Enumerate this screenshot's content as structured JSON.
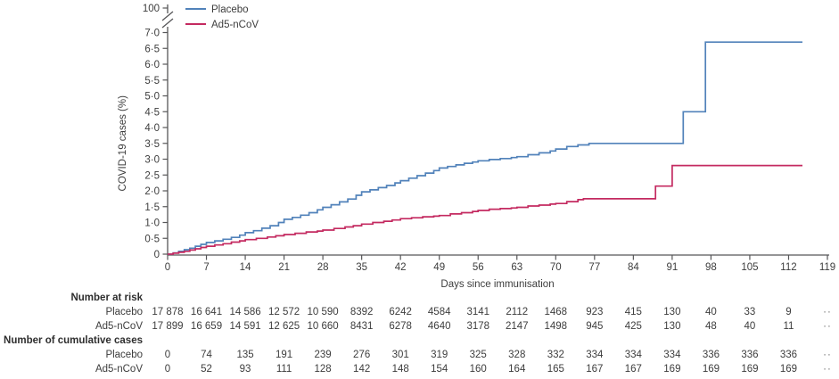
{
  "figure": {
    "yaxis": {
      "title": "COVID-19 cases (%)",
      "break_upper_label": "100",
      "tick_labels": [
        "7·0",
        "6·5",
        "6·0",
        "5·5",
        "5·0",
        "4·5",
        "4·0",
        "3·5",
        "3·0",
        "2·5",
        "2·0",
        "1·5",
        "1·0",
        "0·5",
        "0"
      ],
      "tick_values": [
        7.0,
        6.5,
        6.0,
        5.5,
        5.0,
        4.5,
        4.0,
        3.5,
        3.0,
        2.5,
        2.0,
        1.5,
        1.0,
        0.5,
        0
      ]
    },
    "xaxis": {
      "title": "Days since immunisation",
      "tick_values": [
        0,
        7,
        14,
        21,
        28,
        35,
        42,
        49,
        56,
        63,
        70,
        77,
        84,
        91,
        98,
        105,
        112,
        119
      ]
    },
    "legend": {
      "position": "top-left",
      "items": [
        {
          "label": "Placebo",
          "color": "#5182ba"
        },
        {
          "label": "Ad5-nCoV",
          "color": "#c42a60"
        }
      ]
    },
    "axis_color": "#565658",
    "text_color": "#3d3d3d"
  },
  "chart_data": {
    "type": "line",
    "subtype": "kaplan-meier-step",
    "step": "after",
    "title": "",
    "xlabel": "Days since immunisation",
    "ylabel": "COVID-19 cases (%)",
    "xlim": [
      0,
      119
    ],
    "ylim": [
      0,
      7.0
    ],
    "y_axis_break": {
      "present": true,
      "upper_tick": 100
    },
    "grid": false,
    "legend_position": "top-left",
    "series": [
      {
        "name": "Placebo",
        "color": "#5182ba",
        "points": [
          [
            0,
            0
          ],
          [
            1,
            0.04
          ],
          [
            2,
            0.09
          ],
          [
            3,
            0.14
          ],
          [
            4,
            0.19
          ],
          [
            5,
            0.25
          ],
          [
            6,
            0.31
          ],
          [
            7,
            0.37
          ],
          [
            8.5,
            0.42
          ],
          [
            10,
            0.47
          ],
          [
            11.5,
            0.53
          ],
          [
            13,
            0.6
          ],
          [
            14,
            0.68
          ],
          [
            15.5,
            0.74
          ],
          [
            17,
            0.82
          ],
          [
            18.5,
            0.9
          ],
          [
            20,
            1.0
          ],
          [
            21,
            1.1
          ],
          [
            22.5,
            1.16
          ],
          [
            24,
            1.23
          ],
          [
            25.5,
            1.31
          ],
          [
            27,
            1.4
          ],
          [
            28,
            1.48
          ],
          [
            29.5,
            1.56
          ],
          [
            31,
            1.65
          ],
          [
            32.5,
            1.74
          ],
          [
            34,
            1.86
          ],
          [
            35,
            1.97
          ],
          [
            36.5,
            2.03
          ],
          [
            38,
            2.1
          ],
          [
            39.5,
            2.17
          ],
          [
            41,
            2.25
          ],
          [
            42,
            2.32
          ],
          [
            43.5,
            2.4
          ],
          [
            45,
            2.48
          ],
          [
            46.5,
            2.56
          ],
          [
            48,
            2.64
          ],
          [
            49,
            2.72
          ],
          [
            50.5,
            2.77
          ],
          [
            52,
            2.82
          ],
          [
            53.5,
            2.87
          ],
          [
            55,
            2.91
          ],
          [
            56,
            2.95
          ],
          [
            58,
            2.99
          ],
          [
            60,
            3.02
          ],
          [
            62,
            3.05
          ],
          [
            63,
            3.08
          ],
          [
            65,
            3.14
          ],
          [
            67,
            3.2
          ],
          [
            69,
            3.26
          ],
          [
            70,
            3.32
          ],
          [
            72,
            3.4
          ],
          [
            74,
            3.45
          ],
          [
            76,
            3.5
          ],
          [
            93,
            4.5
          ],
          [
            97,
            6.7
          ],
          [
            114.5,
            6.7
          ]
        ]
      },
      {
        "name": "Ad5-nCoV",
        "color": "#c42a60",
        "points": [
          [
            0,
            0
          ],
          [
            1,
            0.03
          ],
          [
            2,
            0.06
          ],
          [
            3,
            0.09
          ],
          [
            4,
            0.13
          ],
          [
            5,
            0.17
          ],
          [
            6,
            0.21
          ],
          [
            7,
            0.25
          ],
          [
            8.5,
            0.29
          ],
          [
            10,
            0.33
          ],
          [
            11.5,
            0.38
          ],
          [
            13,
            0.42
          ],
          [
            14,
            0.46
          ],
          [
            16,
            0.5
          ],
          [
            18,
            0.54
          ],
          [
            19.5,
            0.58
          ],
          [
            21,
            0.62
          ],
          [
            23,
            0.66
          ],
          [
            25,
            0.7
          ],
          [
            27,
            0.73
          ],
          [
            28,
            0.76
          ],
          [
            30,
            0.81
          ],
          [
            32,
            0.86
          ],
          [
            33.5,
            0.9
          ],
          [
            35,
            0.95
          ],
          [
            37,
            1.0
          ],
          [
            39,
            1.04
          ],
          [
            40.5,
            1.08
          ],
          [
            42,
            1.12
          ],
          [
            44,
            1.15
          ],
          [
            46,
            1.18
          ],
          [
            48,
            1.2
          ],
          [
            49,
            1.22
          ],
          [
            51,
            1.27
          ],
          [
            53,
            1.31
          ],
          [
            55,
            1.35
          ],
          [
            56,
            1.38
          ],
          [
            58,
            1.42
          ],
          [
            60,
            1.44
          ],
          [
            62,
            1.46
          ],
          [
            63,
            1.48
          ],
          [
            65,
            1.52
          ],
          [
            67,
            1.55
          ],
          [
            69,
            1.58
          ],
          [
            70,
            1.6
          ],
          [
            72,
            1.66
          ],
          [
            74,
            1.72
          ],
          [
            75,
            1.75
          ],
          [
            88,
            2.15
          ],
          [
            91,
            2.8
          ],
          [
            114.5,
            2.8
          ]
        ]
      }
    ]
  },
  "risk_table": {
    "column_days": [
      0,
      7,
      14,
      21,
      28,
      35,
      42,
      49,
      56,
      63,
      70,
      77,
      84,
      91,
      98,
      105,
      112
    ],
    "overflow_symbol": "··",
    "sections": [
      {
        "header": "Number at risk",
        "rows": [
          {
            "label": "Placebo",
            "values": [
              "17 878",
              "16 641",
              "14 586",
              "12 572",
              "10 590",
              "8392",
              "6242",
              "4584",
              "3141",
              "2112",
              "1468",
              "923",
              "415",
              "130",
              "40",
              "33",
              "9"
            ]
          },
          {
            "label": "Ad5-nCoV",
            "values": [
              "17 899",
              "16 659",
              "14 591",
              "12 625",
              "10 660",
              "8431",
              "6278",
              "4640",
              "3178",
              "2147",
              "1498",
              "945",
              "425",
              "130",
              "48",
              "40",
              "11"
            ]
          }
        ]
      },
      {
        "header": "Number of cumulative cases",
        "rows": [
          {
            "label": "Placebo",
            "values": [
              "0",
              "74",
              "135",
              "191",
              "239",
              "276",
              "301",
              "319",
              "325",
              "328",
              "332",
              "334",
              "334",
              "334",
              "336",
              "336",
              "336"
            ]
          },
          {
            "label": "Ad5-nCoV",
            "values": [
              "0",
              "52",
              "93",
              "111",
              "128",
              "142",
              "148",
              "154",
              "160",
              "164",
              "165",
              "167",
              "167",
              "169",
              "169",
              "169",
              "169"
            ]
          }
        ]
      }
    ]
  }
}
